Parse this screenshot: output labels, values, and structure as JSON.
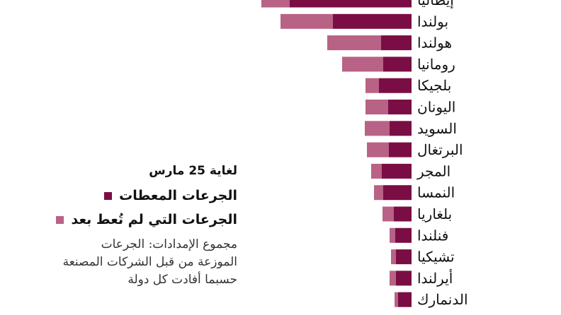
{
  "chart_data": {
    "type": "bar",
    "orientation": "horizontal",
    "stacked": true,
    "categories": [
      "إيطاليا",
      "بولندا",
      "هولندا",
      "رومانيا",
      "بلجيكا",
      "اليونان",
      "السويد",
      "البرتغال",
      "المجر",
      "النمسا",
      "بلغاريا",
      "فنلندا",
      "تشيكيا",
      "أيرلندا",
      "الدنمارك"
    ],
    "series": [
      {
        "name": "الجرعات المعطات",
        "color": "#7a0e44",
        "values": [
          172,
          111,
          43,
          40,
          46,
          33,
          31,
          32,
          42,
          40,
          25,
          23,
          22,
          22,
          19
        ]
      },
      {
        "name": "الجرعات التي لم تُعط بعد",
        "color": "#b86285",
        "values": [
          40,
          74,
          76,
          58,
          19,
          32,
          35,
          31,
          15,
          13,
          16,
          8,
          7,
          9,
          5
        ]
      }
    ],
    "legend_position": "left",
    "grid": false
  },
  "legend": {
    "title": "لغاية 25 مارس",
    "items": [
      {
        "label": "الجرعات المعطات",
        "color": "#7a0e44"
      },
      {
        "label": "الجرعات التي لم تُعط بعد",
        "color": "#b86285"
      }
    ]
  },
  "note_lines": [
    "مجموع الإمدادات: الجرعات",
    "الموزعة من قبل الشركات المصنعة",
    "حسبما أفادت كل دولة"
  ]
}
